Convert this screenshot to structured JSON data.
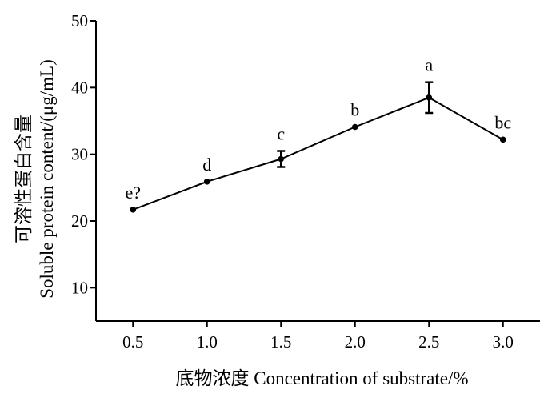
{
  "chart_data": {
    "type": "line",
    "title": "",
    "xlabel": "底物浓度 Concentration of substrate/%",
    "ylabel_cn": "可溶性蛋白含量",
    "ylabel_en": "Soluble protein content/(μg/mL)",
    "x_tick_labels": [
      "0.5",
      "1.0",
      "1.5",
      "2.0",
      "2.5",
      "3.0"
    ],
    "y_tick_labels": [
      "10",
      "20",
      "30",
      "40",
      "50"
    ],
    "xlim": [
      0.25,
      3.25
    ],
    "ylim": [
      5,
      50
    ],
    "grid": false,
    "legend": "none",
    "series": [
      {
        "x": [
          0.5,
          1.0,
          1.5,
          2.0,
          2.5,
          3.0
        ],
        "y": [
          21.7,
          25.9,
          29.3,
          34.1,
          38.5,
          32.2
        ],
        "error": [
          0,
          0,
          1.2,
          0,
          2.3,
          0
        ],
        "labels": [
          "e?",
          "d",
          "c",
          "b",
          "a",
          "bc"
        ]
      }
    ],
    "colors": {
      "line": "#000000",
      "axis": "#000000"
    }
  }
}
